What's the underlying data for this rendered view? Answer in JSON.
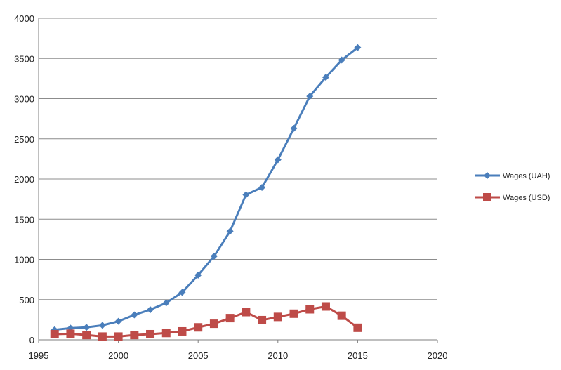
{
  "chart_data": {
    "type": "line",
    "title": "",
    "xlabel": "",
    "ylabel": "",
    "xlim": [
      1995,
      2020
    ],
    "ylim": [
      0,
      4000
    ],
    "xticks": [
      1995,
      2000,
      2005,
      2010,
      2015,
      2020
    ],
    "yticks": [
      0,
      500,
      1000,
      1500,
      2000,
      2500,
      3000,
      3500,
      4000
    ],
    "grid": "horizontal",
    "legend_position": "right",
    "x": [
      1996,
      1997,
      1998,
      1999,
      2000,
      2001,
      2002,
      2003,
      2004,
      2005,
      2006,
      2007,
      2008,
      2009,
      2010,
      2011,
      2012,
      2013,
      2014,
      2015
    ],
    "series": [
      {
        "name": "Wages (UAH)",
        "color": "#4a7ebb",
        "marker": "diamond",
        "values": [
          125,
          145,
          155,
          180,
          230,
          310,
          375,
          460,
          590,
          805,
          1040,
          1350,
          1805,
          1895,
          2240,
          2630,
          3030,
          3265,
          3480,
          3635
        ]
      },
      {
        "name": "Wages (USD)",
        "color": "#be4b48",
        "marker": "square",
        "values": [
          70,
          75,
          60,
          40,
          40,
          60,
          70,
          85,
          105,
          155,
          200,
          270,
          345,
          245,
          285,
          325,
          380,
          415,
          300,
          150
        ]
      }
    ]
  }
}
